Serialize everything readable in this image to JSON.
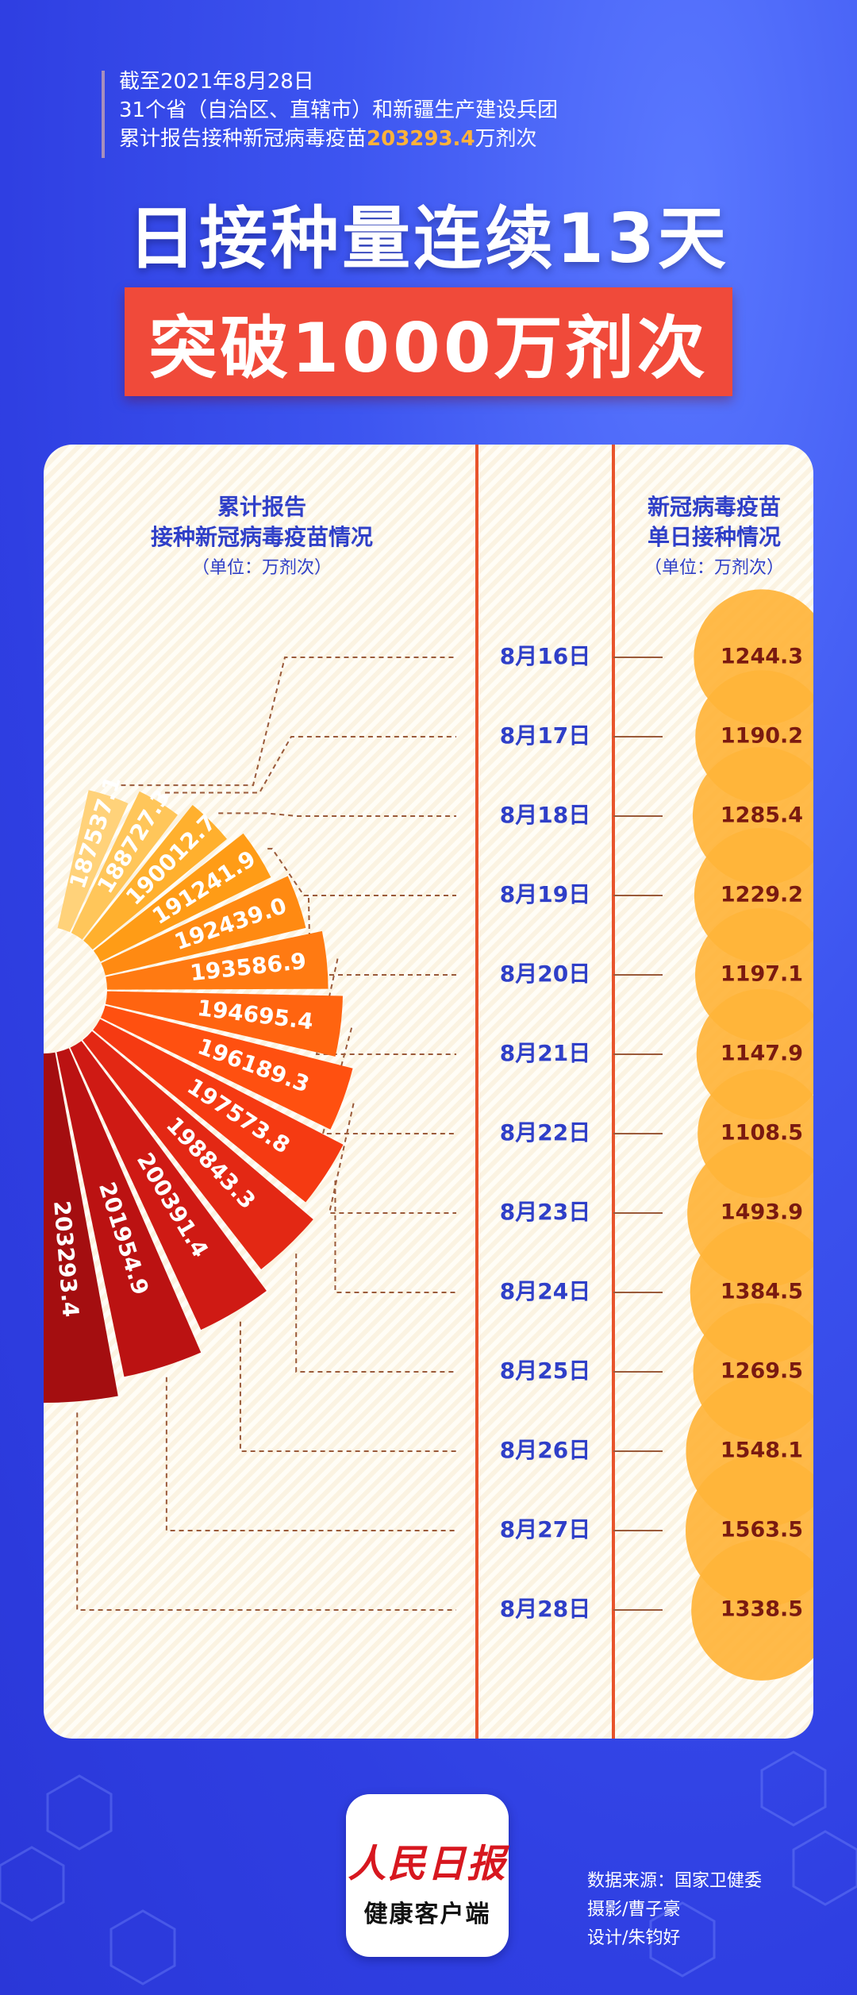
{
  "header": {
    "line1": "截至2021年8月28日",
    "line2": "31个省（自治区、直辖市）和新疆生产建设兵团",
    "line3_prefix": "累计报告接种新冠病毒疫苗",
    "line3_value": "203293.4",
    "line3_suffix": "万剂次"
  },
  "title": {
    "line1": "日接种量连续13天",
    "line2": "突破1000万剂次"
  },
  "left_label": {
    "line1": "累计报告",
    "line2": "接种新冠病毒疫苗情况",
    "unit": "（单位：万剂次）"
  },
  "right_label": {
    "line1": "新冠病毒疫苗",
    "line2": "单日接种情况",
    "unit": "（单位：万剂次）"
  },
  "chart_data": {
    "type": "bar",
    "categories": [
      "8月16日",
      "8月17日",
      "8月18日",
      "8月19日",
      "8月20日",
      "8月21日",
      "8月22日",
      "8月23日",
      "8月24日",
      "8月25日",
      "8月26日",
      "8月27日",
      "8月28日"
    ],
    "series": [
      {
        "name": "累计报告接种新冠病毒疫苗情况",
        "values": [
          187537.1,
          188727.3,
          190012.7,
          191241.9,
          192439.0,
          193586.9,
          194695.4,
          196189.3,
          197573.8,
          198843.3,
          200391.4,
          201954.9,
          203293.4
        ]
      },
      {
        "name": "新冠病毒疫苗单日接种情况",
        "values": [
          1244.3,
          1190.2,
          1285.4,
          1229.2,
          1197.1,
          1147.9,
          1108.5,
          1493.9,
          1384.5,
          1269.5,
          1548.1,
          1563.5,
          1338.5
        ]
      }
    ],
    "cumulative_labels": [
      "187537.1",
      "188727.3",
      "190012.7",
      "191241.9",
      "192439.0",
      "193586.9",
      "194695.4",
      "196189.3",
      "197573.8",
      "198843.3",
      "200391.4",
      "201954.9",
      "203293.4"
    ],
    "daily_labels": [
      "1244.3",
      "1190.2",
      "1285.4",
      "1229.2",
      "1197.1",
      "1147.9",
      "1108.5",
      "1493.9",
      "1384.5",
      "1269.5",
      "1548.1",
      "1563.5",
      "1338.5"
    ],
    "colors": {
      "fan": [
        "#ffd27a",
        "#ffc65a",
        "#ffb02e",
        "#ff9c16",
        "#ff8a12",
        "#ff7a12",
        "#ff6410",
        "#ff5010",
        "#f53a12",
        "#e32814",
        "#cf1a14",
        "#bb1212",
        "#a40e10"
      ],
      "bubble": "#ffb43a",
      "date": "#2f3fc8",
      "divider": "#e8542c"
    }
  },
  "credits": {
    "line1": "数据来源：国家卫健委",
    "line2": "摄影/曹子豪",
    "line3": "设计/朱钧好"
  },
  "logo": {
    "line1": "人民日报",
    "line2": "健康客户端"
  }
}
